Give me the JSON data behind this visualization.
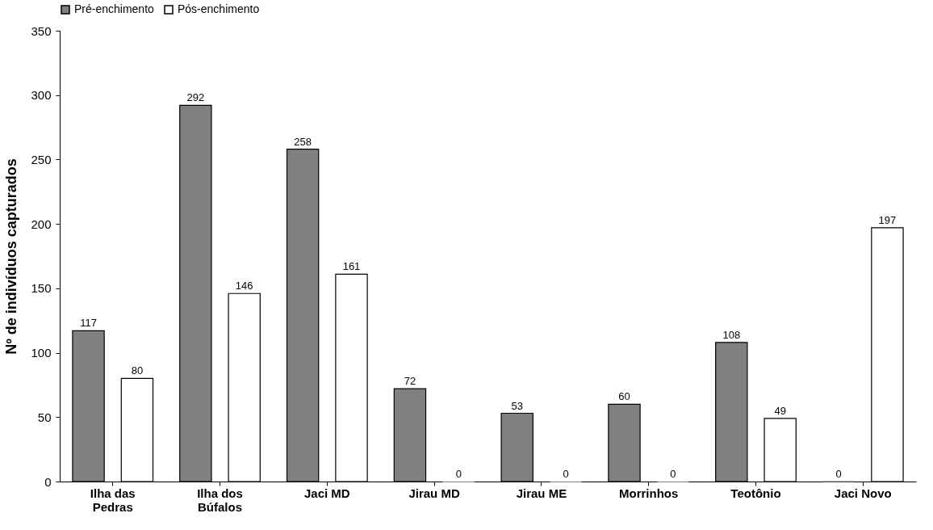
{
  "chart_data": {
    "type": "bar",
    "ylabel": "Nº de indivíduos capturados",
    "categories": [
      "Ilha das\nPedras",
      "Ilha dos\nBúfalos",
      "Jaci MD",
      "Jirau MD",
      "Jirau ME",
      "Morrinhos",
      "Teotônio",
      "Jaci Novo"
    ],
    "series": [
      {
        "name": "Pré-enchimento",
        "color": "#808080",
        "values": [
          117,
          292,
          258,
          72,
          53,
          60,
          108,
          0
        ]
      },
      {
        "name": "Pós-enchimento",
        "color": "#ffffff",
        "values": [
          80,
          146,
          161,
          0,
          0,
          0,
          49,
          197
        ]
      }
    ],
    "ylim": [
      0,
      350
    ],
    "yticks": [
      0,
      50,
      100,
      150,
      200,
      250,
      300,
      350
    ],
    "data_labels": true,
    "legend": "top",
    "grid": false
  }
}
